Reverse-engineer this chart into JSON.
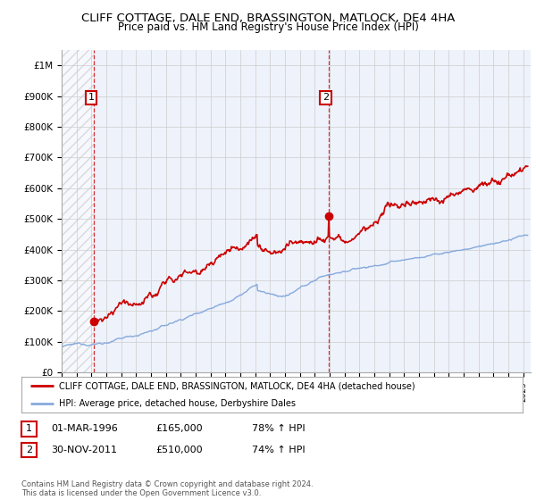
{
  "title": "CLIFF COTTAGE, DALE END, BRASSINGTON, MATLOCK, DE4 4HA",
  "subtitle": "Price paid vs. HM Land Registry's House Price Index (HPI)",
  "xlim_start": 1994.0,
  "xlim_end": 2025.5,
  "ylim": [
    0,
    1050000
  ],
  "yticks": [
    0,
    100000,
    200000,
    300000,
    400000,
    500000,
    600000,
    700000,
    800000,
    900000,
    1000000
  ],
  "ytick_labels": [
    "£0",
    "£100K",
    "£200K",
    "£300K",
    "£400K",
    "£500K",
    "£600K",
    "£700K",
    "£800K",
    "£900K",
    "£1M"
  ],
  "sale1_x": 1996.17,
  "sale1_y": 165000,
  "sale1_label": "1",
  "sale2_x": 2011.92,
  "sale2_y": 510000,
  "sale2_label": "2",
  "sale_color": "#cc0000",
  "hpi_color": "#88aadd",
  "background_color": "#eef2fb",
  "hatch_color": "#cccccc",
  "legend_line1": "CLIFF COTTAGE, DALE END, BRASSINGTON, MATLOCK, DE4 4HA (detached house)",
  "legend_line2": "HPI: Average price, detached house, Derbyshire Dales",
  "table_row1": [
    "1",
    "01-MAR-1996",
    "£165,000",
    "78% ↑ HPI"
  ],
  "table_row2": [
    "2",
    "30-NOV-2011",
    "£510,000",
    "74% ↑ HPI"
  ],
  "footnote": "Contains HM Land Registry data © Crown copyright and database right 2024.\nThis data is licensed under the Open Government Licence v3.0.",
  "vline_color": "#cc0000",
  "title_fontsize": 10,
  "subtitle_fontsize": 9
}
